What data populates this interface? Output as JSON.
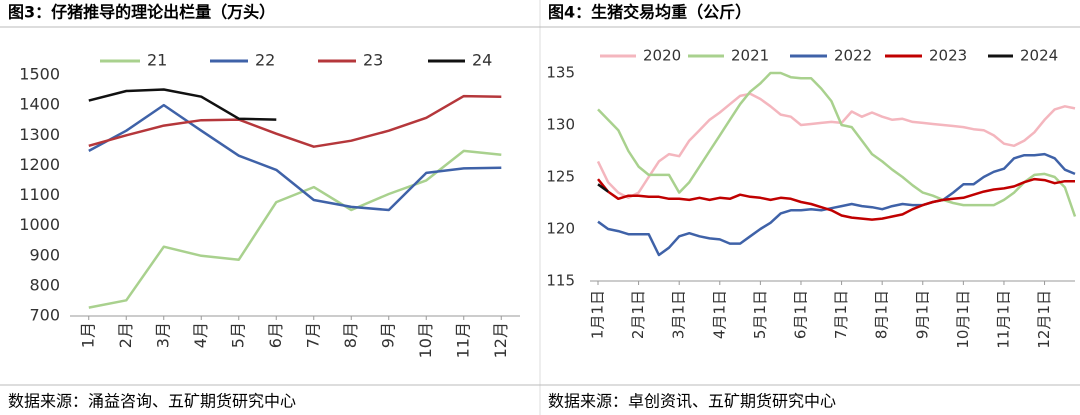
{
  "chart_data": [
    {
      "type": "line",
      "title": "图3：仔猪推导的理论出栏量（万头）",
      "source": "数据来源：涌益咨询、五矿期货研究中心",
      "categories": [
        "1月",
        "2月",
        "3月",
        "4月",
        "5月",
        "6月",
        "7月",
        "8月",
        "9月",
        "10月",
        "11月",
        "12月"
      ],
      "series": [
        {
          "name": "21",
          "color": "#a9d18e",
          "values": [
            728,
            752,
            930,
            900,
            887,
            1078,
            1128,
            1052,
            1105,
            1150,
            1248,
            1235
          ]
        },
        {
          "name": "22",
          "color": "#3f62a8",
          "values": [
            1248,
            1315,
            1400,
            1315,
            1232,
            1185,
            1085,
            1062,
            1052,
            1175,
            1190,
            1192
          ]
        },
        {
          "name": "23",
          "color": "#b5373b",
          "values": [
            1265,
            1300,
            1332,
            1350,
            1352,
            1305,
            1262,
            1282,
            1315,
            1358,
            1430,
            1428
          ]
        },
        {
          "name": "24",
          "color": "#111111",
          "values": [
            1415,
            1447,
            1452,
            1428,
            1355,
            1352,
            null,
            null,
            null,
            null,
            null,
            null
          ]
        }
      ],
      "ylim": [
        700,
        1500
      ],
      "yticks": [
        700,
        800,
        900,
        1000,
        1100,
        1200,
        1300,
        1400,
        1500
      ]
    },
    {
      "type": "line",
      "title": "图4：生猪交易均重（公斤）",
      "source": "数据来源：卓创资讯、五矿期货研究中心",
      "categories": [
        "1月1日",
        null,
        null,
        null,
        "2月1日",
        null,
        null,
        null,
        "3月1日",
        null,
        null,
        null,
        "4月1日",
        null,
        null,
        null,
        "5月1日",
        null,
        null,
        null,
        "6月1日",
        null,
        null,
        null,
        "7月1日",
        null,
        null,
        null,
        "8月1日",
        null,
        null,
        null,
        "9月1日",
        null,
        null,
        null,
        "10月1日",
        null,
        null,
        null,
        "11月1日",
        null,
        null,
        null,
        "12月1日",
        null,
        null,
        null
      ],
      "series": [
        {
          "name": "2020",
          "color": "#f4b6be",
          "values": [
            126.5,
            124.5,
            123.5,
            123,
            123.5,
            125,
            126.5,
            127.2,
            127,
            128.5,
            129.5,
            130.5,
            131.2,
            132,
            132.8,
            133,
            132.5,
            131.8,
            131,
            130.8,
            130,
            130.1,
            130.2,
            130.3,
            130.2,
            131.3,
            130.8,
            131.2,
            130.8,
            130.5,
            130.6,
            130.3,
            130.2,
            130.1,
            130,
            129.9,
            129.8,
            129.6,
            129.5,
            129,
            128.2,
            128,
            128.5,
            129.3,
            130.5,
            131.5,
            131.8,
            131.6
          ]
        },
        {
          "name": "2021",
          "color": "#a9d18e",
          "values": [
            131.5,
            130.5,
            129.5,
            127.5,
            126,
            125.2,
            125.2,
            125.2,
            123.5,
            124.5,
            126,
            127.5,
            129,
            130.5,
            132,
            133.2,
            134,
            135,
            135,
            134.6,
            134.5,
            134.5,
            133.5,
            132.3,
            130,
            129.8,
            128.5,
            127.2,
            126.5,
            125.7,
            125,
            124.2,
            123.5,
            123.2,
            122.8,
            122.5,
            122.3,
            122.3,
            122.3,
            122.3,
            122.8,
            123.5,
            124.5,
            125.2,
            125.3,
            125,
            124,
            121.2
          ]
        },
        {
          "name": "2022",
          "color": "#3f62a8",
          "values": [
            120.7,
            120,
            119.8,
            119.5,
            119.5,
            119.5,
            117.5,
            118.2,
            119.3,
            119.6,
            119.3,
            119.1,
            119,
            118.6,
            118.6,
            119.3,
            120,
            120.6,
            121.5,
            121.8,
            121.8,
            121.9,
            121.8,
            122,
            122.2,
            122.4,
            122.2,
            122.1,
            121.9,
            122.2,
            122.4,
            122.3,
            122.3,
            122.6,
            122.8,
            123.5,
            124.3,
            124.3,
            125,
            125.5,
            125.8,
            126.8,
            127.1,
            127.1,
            127.2,
            126.8,
            125.7,
            125.3
          ]
        },
        {
          "name": "2023",
          "color": "#c00000",
          "values": [
            124.8,
            123.6,
            122.9,
            123.2,
            123.2,
            123.1,
            123.1,
            122.9,
            122.9,
            122.8,
            123,
            122.8,
            123,
            122.9,
            123.3,
            123.1,
            123,
            122.8,
            123,
            122.9,
            122.6,
            122.4,
            122.1,
            121.8,
            121.3,
            121.1,
            121,
            120.9,
            121,
            121.2,
            121.4,
            121.9,
            122.3,
            122.6,
            122.8,
            122.9,
            123,
            123.3,
            123.6,
            123.8,
            123.9,
            124.1,
            124.5,
            124.8,
            124.7,
            124.4,
            124.6,
            124.6
          ]
        },
        {
          "name": "2024",
          "color": "#111111",
          "values": [
            124.3,
            123.6,
            null,
            null,
            null,
            null,
            null,
            null,
            null,
            null,
            null,
            null,
            null,
            null,
            null,
            null,
            null,
            null,
            null,
            null,
            null,
            null,
            null,
            null,
            null,
            null,
            null,
            null,
            null,
            null,
            null,
            null,
            null,
            null,
            null,
            null,
            null,
            null,
            null,
            null,
            null,
            null,
            null,
            null,
            null,
            null,
            null,
            null
          ]
        }
      ],
      "ylim": [
        115,
        136
      ],
      "yticks": [
        115,
        120,
        125,
        130,
        135
      ]
    }
  ]
}
